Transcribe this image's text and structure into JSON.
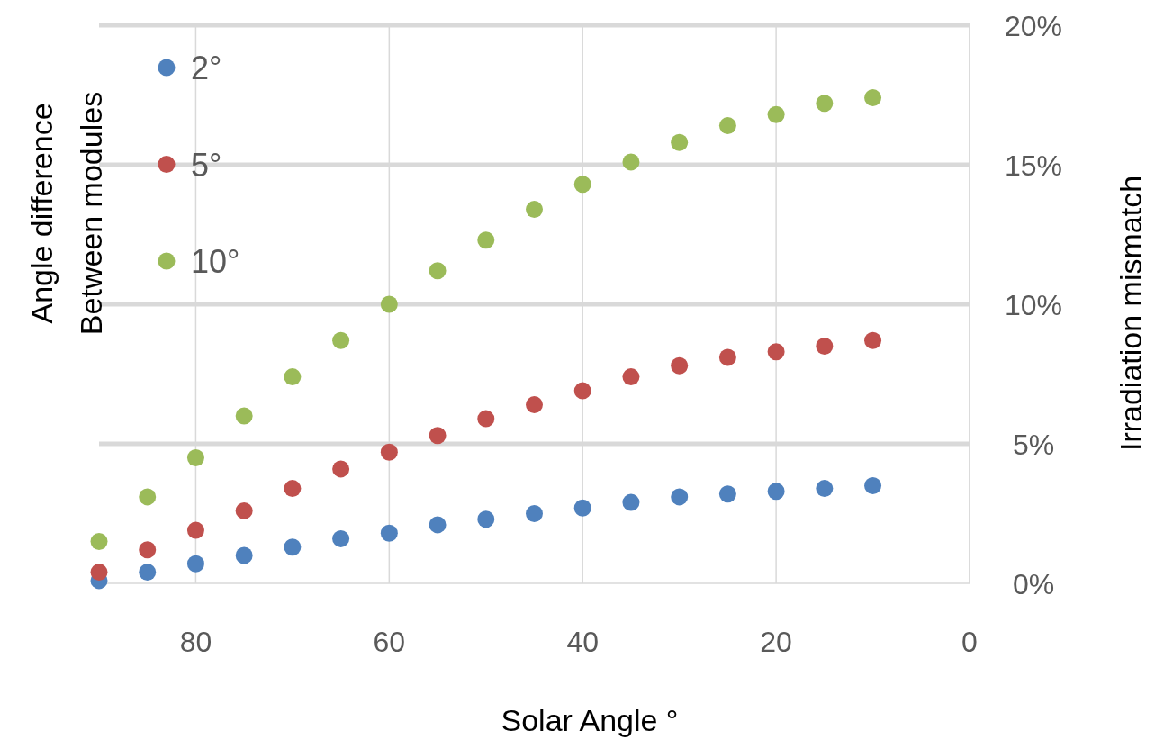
{
  "chart_data": {
    "type": "scatter",
    "xlabel": "Solar Angle °",
    "ylabel": "Irradiation mismatch",
    "legend_title": "Angle difference Between modules",
    "x": [
      90,
      85,
      80,
      75,
      70,
      65,
      60,
      55,
      50,
      45,
      40,
      35,
      30,
      25,
      20,
      15,
      10
    ],
    "series": [
      {
        "name": "2°",
        "color": "#4f81bd",
        "values": [
          0.1,
          0.4,
          0.7,
          1.0,
          1.3,
          1.6,
          1.8,
          2.1,
          2.3,
          2.5,
          2.7,
          2.9,
          3.1,
          3.2,
          3.3,
          3.4,
          3.5
        ]
      },
      {
        "name": "5°",
        "color": "#c0504d",
        "values": [
          0.4,
          1.2,
          1.9,
          2.6,
          3.4,
          4.1,
          4.7,
          5.3,
          5.9,
          6.4,
          6.9,
          7.4,
          7.8,
          8.1,
          8.3,
          8.5,
          8.7
        ]
      },
      {
        "name": "10°",
        "color": "#9bbb59",
        "values": [
          1.5,
          3.1,
          4.5,
          6.0,
          7.4,
          8.7,
          10.0,
          11.2,
          12.3,
          13.4,
          14.3,
          15.1,
          15.8,
          16.4,
          16.8,
          17.2,
          17.4
        ]
      }
    ],
    "xlim": [
      90,
      0
    ],
    "xticks": [
      80,
      60,
      40,
      20,
      0
    ],
    "ylim": [
      0,
      20
    ],
    "yticks": [
      {
        "value": 0,
        "label": "0%"
      },
      {
        "value": 5,
        "label": "5%"
      },
      {
        "value": 10,
        "label": "10%"
      },
      {
        "value": 15,
        "label": "15%"
      },
      {
        "value": 20,
        "label": "20%"
      }
    ],
    "grid": true,
    "legend": "top left",
    "marker": "circle"
  }
}
